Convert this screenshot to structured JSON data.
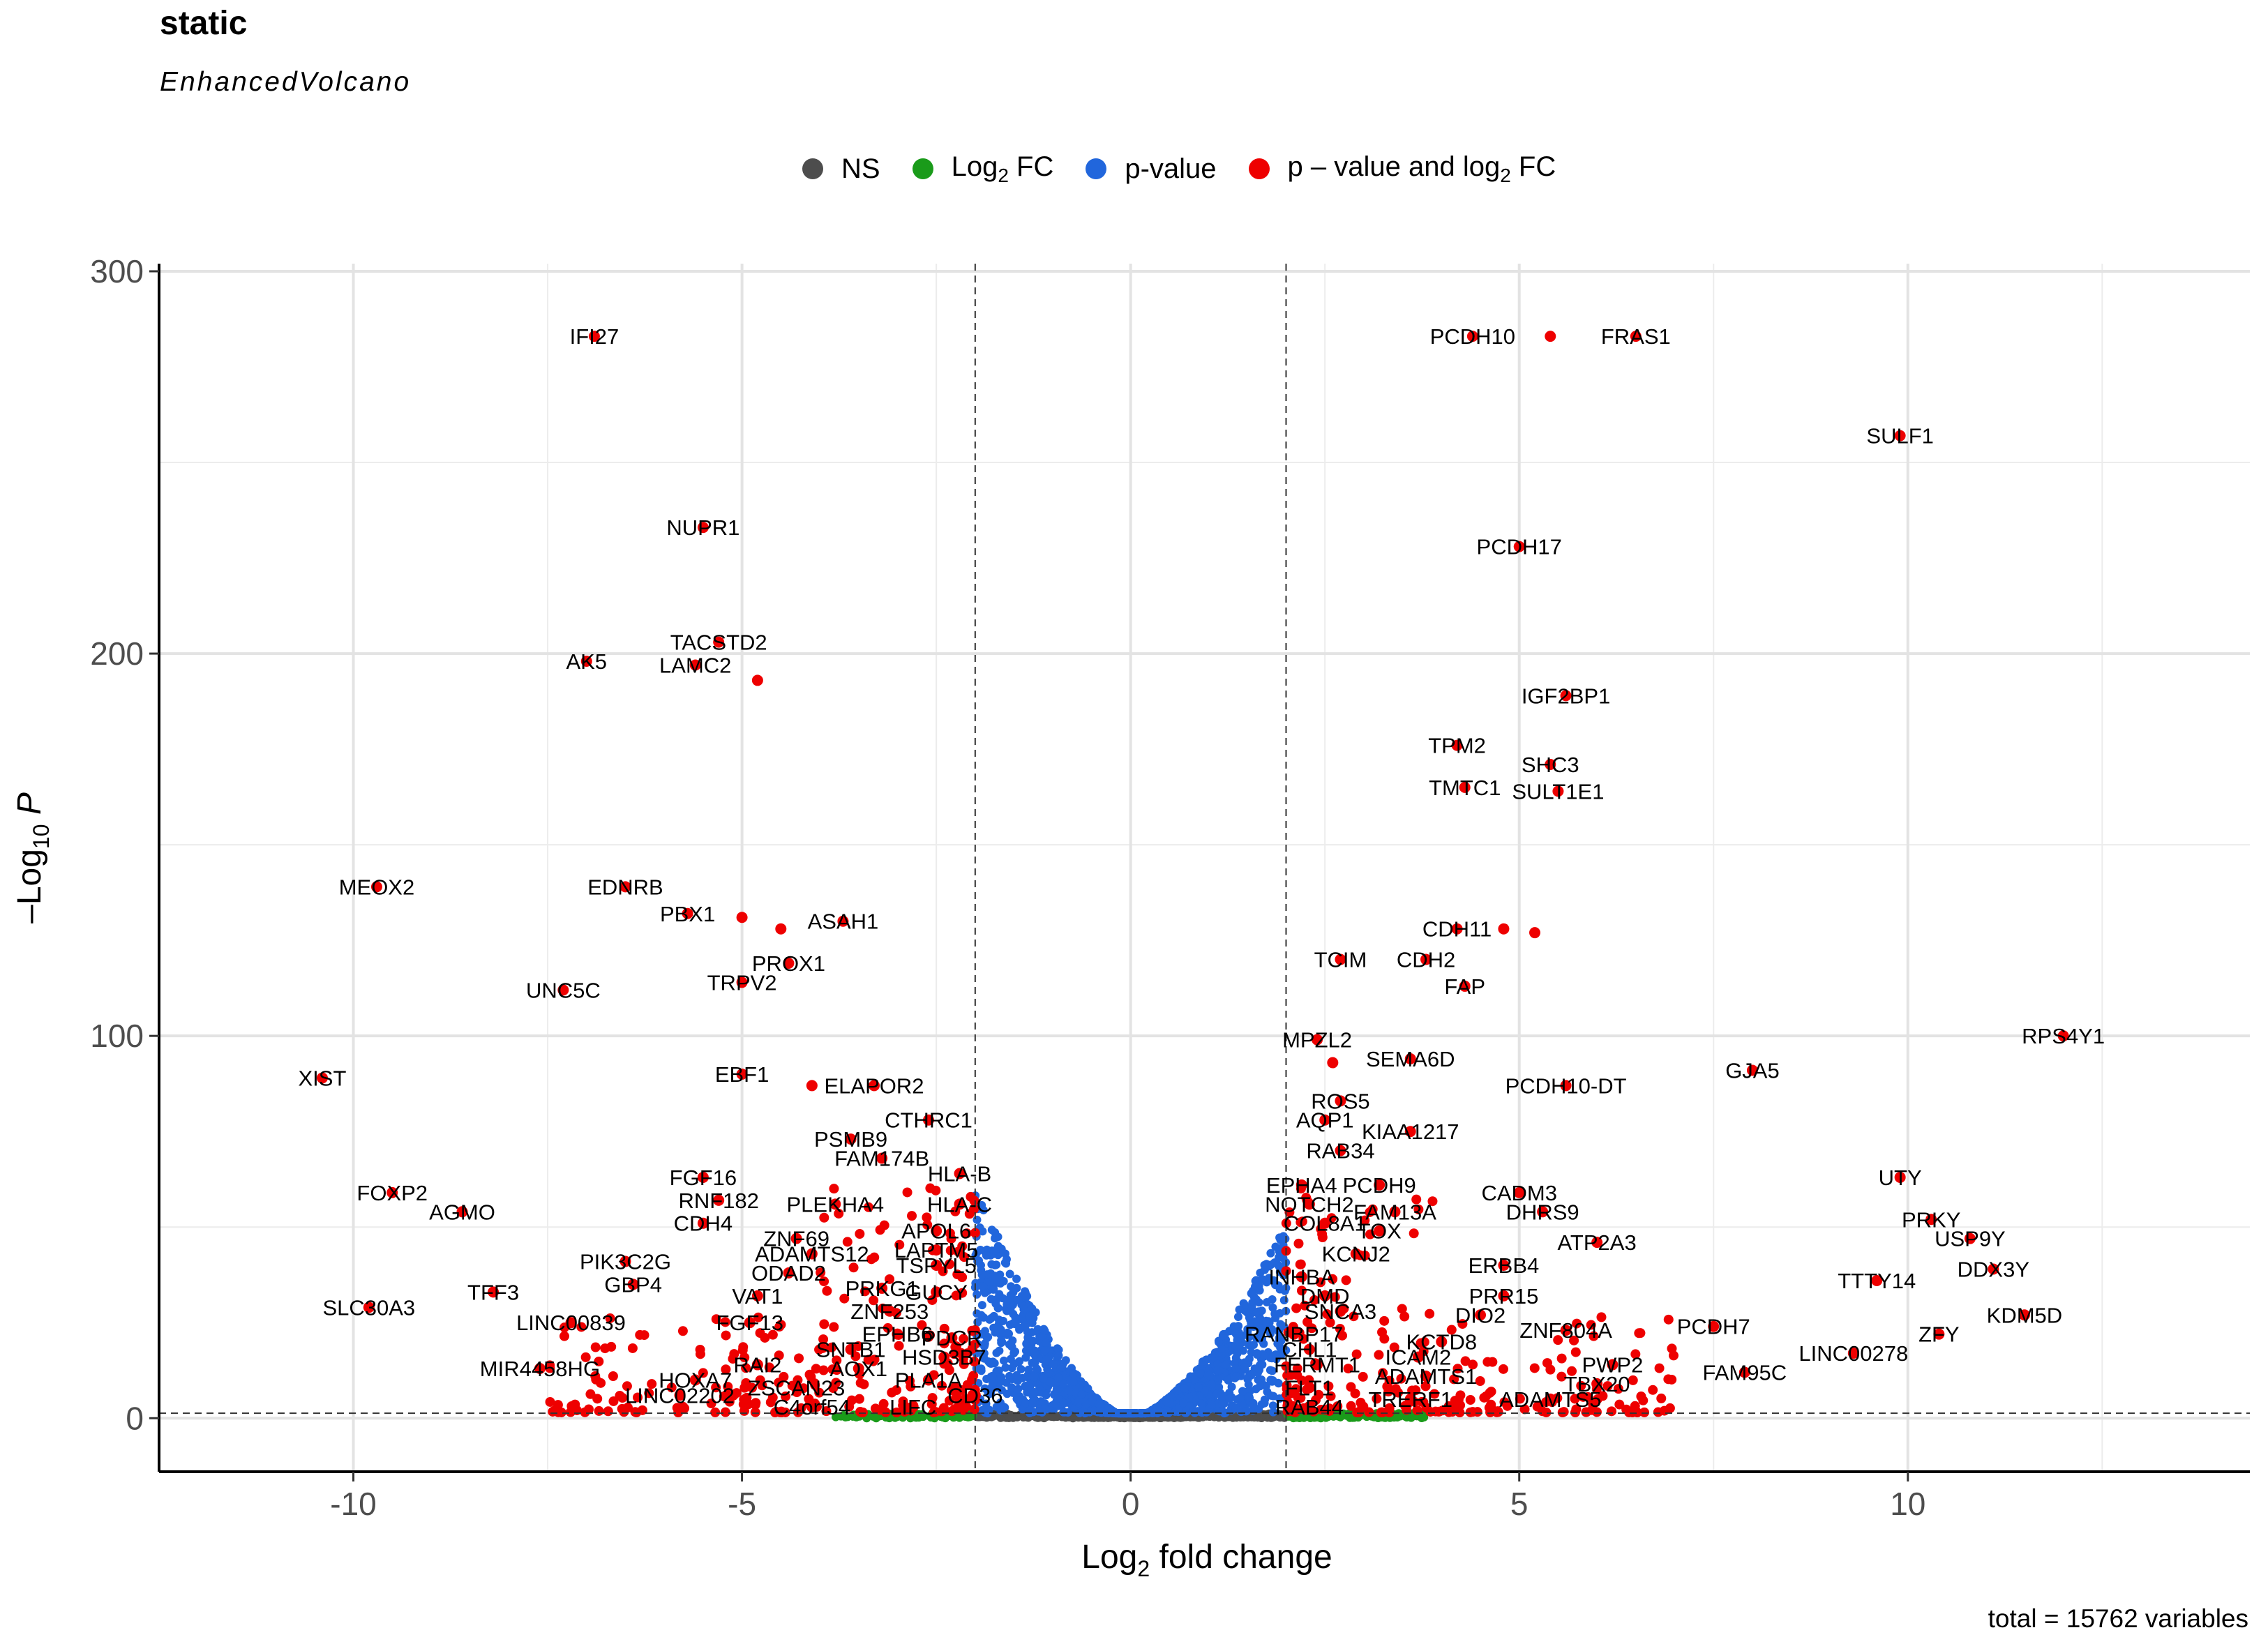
{
  "title": "static",
  "subtitle": "EnhancedVolcano",
  "caption": "total = 15762 variables",
  "legend": [
    {
      "name": "NS",
      "color": "#4d4d4d"
    },
    {
      "name": "Log2 FC",
      "color": "#1a9b1a"
    },
    {
      "name": "p-value",
      "color": "#2166dc"
    },
    {
      "name": "p – value and log2 FC",
      "color": "#ee0000"
    }
  ],
  "chart_data": {
    "type": "scatter",
    "title": "static",
    "subtitle": "EnhancedVolcano",
    "xlabel": "Log2 fold change",
    "ylabel": "–Log10 P",
    "xlim": [
      -12.5,
      14.4
    ],
    "ylim": [
      -14,
      302
    ],
    "x_ticks": [
      -10,
      -5,
      0,
      5,
      10
    ],
    "y_ticks": [
      0,
      100,
      200,
      300
    ],
    "fc_cutoff": 2,
    "p_cutoff_line": 1.3,
    "grid": true,
    "legend_position": "top",
    "labeled_points": [
      {
        "label": "IFI27",
        "x": -6.9,
        "y": 283
      },
      {
        "label": "PCDH10",
        "x": 4.4,
        "y": 283
      },
      {
        "label": "FRAS1",
        "x": 6.5,
        "y": 283
      },
      {
        "label": "",
        "x": 5.4,
        "y": 283
      },
      {
        "label": "SULF1",
        "x": 9.9,
        "y": 257
      },
      {
        "label": "NUPR1",
        "x": -5.5,
        "y": 233
      },
      {
        "label": "PCDH17",
        "x": 5.0,
        "y": 228
      },
      {
        "label": "TACSTD2",
        "x": -5.3,
        "y": 203
      },
      {
        "label": "AK5",
        "x": -7.0,
        "y": 198
      },
      {
        "label": "LAMC2",
        "x": -5.6,
        "y": 197
      },
      {
        "label": "",
        "x": -4.8,
        "y": 193
      },
      {
        "label": "IGF2BP1",
        "x": 5.6,
        "y": 189
      },
      {
        "label": "TPM2",
        "x": 4.2,
        "y": 176
      },
      {
        "label": "SHC3",
        "x": 5.4,
        "y": 171
      },
      {
        "label": "TMTC1",
        "x": 4.3,
        "y": 165
      },
      {
        "label": "SULT1E1",
        "x": 5.5,
        "y": 164
      },
      {
        "label": "MEOX2",
        "x": -9.7,
        "y": 139
      },
      {
        "label": "EDNRB",
        "x": -6.5,
        "y": 139
      },
      {
        "label": "",
        "x": -5.0,
        "y": 131
      },
      {
        "label": "PBX1",
        "x": -5.7,
        "y": 132
      },
      {
        "label": "ASAH1",
        "x": -3.7,
        "y": 130
      },
      {
        "label": "",
        "x": -4.5,
        "y": 128
      },
      {
        "label": "CDH11",
        "x": 4.2,
        "y": 128
      },
      {
        "label": "",
        "x": 4.8,
        "y": 128
      },
      {
        "label": "",
        "x": 5.2,
        "y": 127
      },
      {
        "label": "PROX1",
        "x": -4.4,
        "y": 119
      },
      {
        "label": "TCIM",
        "x": 2.7,
        "y": 120
      },
      {
        "label": "CDH2",
        "x": 3.8,
        "y": 120
      },
      {
        "label": "TRPV2",
        "x": -5.0,
        "y": 114
      },
      {
        "label": "UNC5C",
        "x": -7.3,
        "y": 112
      },
      {
        "label": "FAP",
        "x": 4.3,
        "y": 113
      },
      {
        "label": "RPS4Y1",
        "x": 12.0,
        "y": 100
      },
      {
        "label": "MPZL2",
        "x": 2.4,
        "y": 99
      },
      {
        "label": "",
        "x": 2.6,
        "y": 93
      },
      {
        "label": "SEMA6D",
        "x": 3.6,
        "y": 94
      },
      {
        "label": "XIST",
        "x": -10.4,
        "y": 89
      },
      {
        "label": "EBF1",
        "x": -5.0,
        "y": 90
      },
      {
        "label": "GJA5",
        "x": 8.0,
        "y": 91
      },
      {
        "label": "ELAPOR2",
        "x": -3.3,
        "y": 87
      },
      {
        "label": "",
        "x": -4.1,
        "y": 87
      },
      {
        "label": "PCDH10-DT",
        "x": 5.6,
        "y": 87
      },
      {
        "label": "ROS5",
        "x": 2.7,
        "y": 83
      },
      {
        "label": "CTHRC1",
        "x": -2.6,
        "y": 78
      },
      {
        "label": "AQP1",
        "x": 2.5,
        "y": 78
      },
      {
        "label": "KIAA1217",
        "x": 3.6,
        "y": 75
      },
      {
        "label": "PSMB9",
        "x": -3.6,
        "y": 73
      },
      {
        "label": "RAB34",
        "x": 2.7,
        "y": 70
      },
      {
        "label": "FAM174B",
        "x": -3.2,
        "y": 68
      },
      {
        "label": "UTY",
        "x": 9.9,
        "y": 63
      },
      {
        "label": "FGF16",
        "x": -5.5,
        "y": 63
      },
      {
        "label": "HLA-B",
        "x": -2.2,
        "y": 64
      },
      {
        "label": "EPHA4",
        "x": 2.2,
        "y": 61
      },
      {
        "label": "PCDH9",
        "x": 3.2,
        "y": 61
      },
      {
        "label": "FOXP2",
        "x": -9.5,
        "y": 59
      },
      {
        "label": "CADM3",
        "x": 5.0,
        "y": 59
      },
      {
        "label": "RNF182",
        "x": -5.3,
        "y": 57
      },
      {
        "label": "PLEKHA4",
        "x": -3.8,
        "y": 56
      },
      {
        "label": "HLA-C",
        "x": -2.2,
        "y": 56
      },
      {
        "label": "NOTCH2",
        "x": 2.3,
        "y": 56
      },
      {
        "label": "AGMO",
        "x": -8.6,
        "y": 54
      },
      {
        "label": "FAM13A",
        "x": 3.4,
        "y": 54
      },
      {
        "label": "DHRS9",
        "x": 5.3,
        "y": 54
      },
      {
        "label": "PRKY",
        "x": 10.3,
        "y": 52
      },
      {
        "label": "CDH4",
        "x": -5.5,
        "y": 51
      },
      {
        "label": "COL8A1",
        "x": 2.5,
        "y": 51
      },
      {
        "label": "TOX",
        "x": 3.2,
        "y": 49
      },
      {
        "label": "APOL6",
        "x": -2.5,
        "y": 49
      },
      {
        "label": "ATP2A3",
        "x": 6.0,
        "y": 46
      },
      {
        "label": "USP9Y",
        "x": 10.8,
        "y": 47
      },
      {
        "label": "ZNF69",
        "x": -4.3,
        "y": 47
      },
      {
        "label": "LAPTM5",
        "x": -2.5,
        "y": 44
      },
      {
        "label": "KCNJ2",
        "x": 2.9,
        "y": 43
      },
      {
        "label": "ADAMTS12",
        "x": -4.1,
        "y": 43
      },
      {
        "label": "PIK3C2G",
        "x": -6.5,
        "y": 41
      },
      {
        "label": "ERBB4",
        "x": 4.8,
        "y": 40
      },
      {
        "label": "TSPYL5",
        "x": -2.5,
        "y": 40
      },
      {
        "label": "DDX3Y",
        "x": 11.1,
        "y": 39
      },
      {
        "label": "ODAD2",
        "x": -4.4,
        "y": 38
      },
      {
        "label": "INHBA",
        "x": 2.2,
        "y": 37
      },
      {
        "label": "TTTY14",
        "x": 9.6,
        "y": 36
      },
      {
        "label": "GBP4",
        "x": -6.4,
        "y": 35
      },
      {
        "label": "PRKG1",
        "x": -3.2,
        "y": 34
      },
      {
        "label": "GUCY",
        "x": -2.5,
        "y": 33
      },
      {
        "label": "DMD",
        "x": 2.5,
        "y": 32
      },
      {
        "label": "TFF3",
        "x": -8.2,
        "y": 33
      },
      {
        "label": "VAT1",
        "x": -4.8,
        "y": 32
      },
      {
        "label": "PRR15",
        "x": 4.8,
        "y": 32
      },
      {
        "label": "SLC30A3",
        "x": -9.8,
        "y": 29
      },
      {
        "label": "ZNF253",
        "x": -3.1,
        "y": 28
      },
      {
        "label": "SNCA3",
        "x": 2.7,
        "y": 28
      },
      {
        "label": "DIO2",
        "x": 4.5,
        "y": 27
      },
      {
        "label": "KDM5D",
        "x": 11.5,
        "y": 27
      },
      {
        "label": "FGF13",
        "x": -4.9,
        "y": 25
      },
      {
        "label": "LINC00839",
        "x": -7.2,
        "y": 25
      },
      {
        "label": "PCDH7",
        "x": 7.5,
        "y": 24
      },
      {
        "label": "ZNF804A",
        "x": 5.6,
        "y": 23
      },
      {
        "label": "ZFY",
        "x": 10.4,
        "y": 22
      },
      {
        "label": "EPHB6",
        "x": -3.0,
        "y": 22
      },
      {
        "label": "RANBP17",
        "x": 2.1,
        "y": 22
      },
      {
        "label": "PDCR",
        "x": -2.3,
        "y": 21
      },
      {
        "label": "KCTD8",
        "x": 4.0,
        "y": 20
      },
      {
        "label": "SNTB1",
        "x": -3.6,
        "y": 18
      },
      {
        "label": "CHL1",
        "x": 2.3,
        "y": 18
      },
      {
        "label": "LINC00278",
        "x": 9.3,
        "y": 17
      },
      {
        "label": "HSD3B7",
        "x": -2.4,
        "y": 16
      },
      {
        "label": "ICAM2",
        "x": 3.7,
        "y": 16
      },
      {
        "label": "PWP2",
        "x": 6.2,
        "y": 14
      },
      {
        "label": "RAI2",
        "x": -4.8,
        "y": 14
      },
      {
        "label": "FERMT1",
        "x": 2.4,
        "y": 14
      },
      {
        "label": "MIR4458HG",
        "x": -7.6,
        "y": 13
      },
      {
        "label": "AOX1",
        "x": -3.5,
        "y": 13
      },
      {
        "label": "FAM95C",
        "x": 7.9,
        "y": 12
      },
      {
        "label": "ADAMTS1",
        "x": 3.8,
        "y": 11
      },
      {
        "label": "HOXA7",
        "x": -5.6,
        "y": 10
      },
      {
        "label": "PLA1A",
        "x": -2.6,
        "y": 10
      },
      {
        "label": "TBX20",
        "x": 6.0,
        "y": 9
      },
      {
        "label": "ZSCAN23",
        "x": -4.3,
        "y": 8
      },
      {
        "label": "FLT1",
        "x": 2.3,
        "y": 8
      },
      {
        "label": "LINC02202",
        "x": -5.8,
        "y": 6
      },
      {
        "label": "CD36",
        "x": -2.0,
        "y": 6
      },
      {
        "label": "ADAMTS5",
        "x": 5.4,
        "y": 5
      },
      {
        "label": "TRERF1",
        "x": 3.6,
        "y": 5
      },
      {
        "label": "C4orf54",
        "x": -4.1,
        "y": 3
      },
      {
        "label": "LIFC",
        "x": -2.8,
        "y": 3
      },
      {
        "label": "RAB44",
        "x": 2.3,
        "y": 3
      }
    ]
  },
  "strings": {
    "xlabel_main": "Log",
    "xlabel_sub": "2",
    "xlabel_tail": " fold change",
    "ylabel_prefix": "–Log",
    "ylabel_sub": "10",
    "ylabel_tail": " P"
  }
}
